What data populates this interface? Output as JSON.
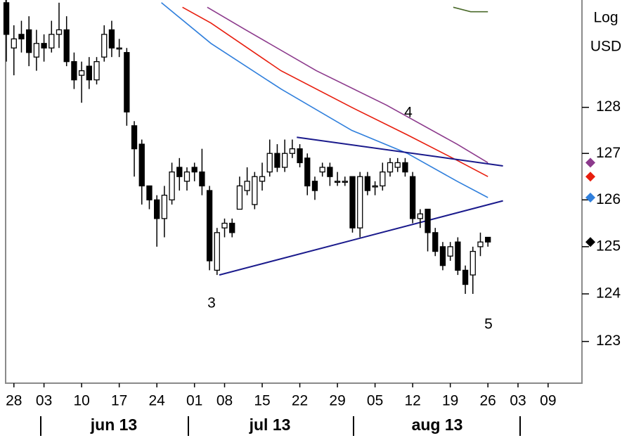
{
  "chart_data": {
    "type": "candlestick",
    "axis_label": [
      "Log",
      "USD"
    ],
    "log_scale": true,
    "x": [
      -1,
      0,
      1,
      2,
      3,
      4,
      5,
      6,
      7,
      8,
      9,
      10,
      11,
      12,
      13,
      14,
      15,
      16,
      17,
      18,
      19,
      20,
      21,
      22,
      23,
      24,
      25,
      26,
      27,
      28,
      29,
      30,
      31,
      32,
      33,
      34,
      35,
      36,
      37,
      38,
      39,
      40,
      41,
      42,
      43,
      44,
      45,
      46,
      47,
      48,
      49,
      50,
      51,
      52,
      53,
      54,
      55,
      56,
      57,
      58,
      59,
      60,
      61,
      62,
      63
    ],
    "open": [
      130.3,
      129.3,
      129.6,
      129.7,
      129.1,
      129.4,
      129.3,
      129.6,
      129.7,
      129.0,
      128.7,
      128.9,
      128.6,
      129.1,
      129.7,
      129.3,
      129.2,
      127.6,
      127.2,
      126.3,
      126.0,
      125.6,
      126.0,
      126.7,
      126.4,
      126.7,
      126.6,
      126.2,
      124.5,
      125.4,
      125.5,
      125.8,
      126.2,
      125.9,
      126.4,
      126.6,
      127.0,
      126.7,
      127.0,
      127.1,
      126.9,
      126.4,
      126.6,
      126.7,
      126.4,
      126.4,
      126.5,
      125.4,
      126.5,
      126.3,
      126.3,
      126.6,
      126.7,
      126.8,
      126.5,
      125.6,
      125.8,
      125.3,
      125.0,
      124.8,
      125.1,
      124.5,
      124.4,
      125.0,
      125.2
    ],
    "high": [
      130.4,
      129.8,
      129.9,
      130.0,
      129.7,
      129.6,
      129.9,
      130.3,
      130.0,
      129.2,
      129.0,
      129.1,
      129.1,
      129.8,
      129.9,
      129.5,
      129.3,
      127.7,
      127.3,
      126.3,
      126.1,
      126.3,
      126.8,
      126.9,
      126.7,
      126.8,
      127.1,
      126.3,
      125.4,
      125.6,
      125.6,
      126.5,
      126.7,
      126.6,
      126.8,
      127.3,
      127.2,
      127.3,
      127.3,
      127.2,
      127.0,
      126.5,
      126.8,
      126.8,
      126.6,
      126.5,
      126.5,
      126.6,
      126.6,
      126.4,
      126.8,
      126.9,
      126.9,
      126.9,
      126.6,
      125.8,
      125.8,
      125.4,
      125.1,
      125.1,
      125.2,
      124.6,
      125.0,
      125.3,
      125.2
    ],
    "low": [
      129.0,
      128.7,
      129.2,
      128.9,
      128.8,
      129.0,
      129.2,
      129.3,
      128.9,
      128.4,
      128.1,
      128.4,
      128.5,
      129.0,
      129.1,
      129.1,
      127.6,
      126.5,
      125.9,
      125.8,
      125.0,
      125.2,
      125.9,
      126.2,
      126.2,
      126.4,
      126.1,
      124.5,
      124.4,
      125.2,
      125.2,
      125.8,
      126.1,
      125.8,
      126.2,
      126.5,
      126.6,
      126.6,
      126.9,
      126.7,
      126.1,
      126.0,
      126.5,
      126.3,
      126.3,
      126.3,
      125.3,
      125.2,
      126.1,
      126.1,
      126.2,
      126.5,
      126.6,
      126.5,
      125.5,
      125.4,
      124.9,
      124.8,
      124.5,
      124.7,
      124.4,
      124.0,
      124.0,
      124.8,
      125.0
    ],
    "close": [
      129.6,
      129.5,
      129.5,
      129.2,
      129.4,
      129.3,
      129.6,
      129.7,
      129.0,
      128.6,
      128.8,
      128.6,
      129.0,
      129.6,
      129.3,
      129.3,
      127.9,
      127.1,
      126.3,
      126.0,
      125.6,
      126.1,
      126.6,
      126.5,
      126.6,
      126.6,
      126.3,
      124.7,
      125.3,
      125.5,
      125.3,
      126.3,
      126.4,
      126.5,
      126.5,
      127.0,
      126.7,
      127.0,
      127.1,
      126.8,
      126.3,
      126.2,
      126.7,
      126.5,
      126.4,
      126.4,
      125.4,
      126.5,
      126.2,
      126.3,
      126.6,
      126.8,
      126.8,
      126.6,
      125.6,
      125.7,
      125.3,
      124.9,
      124.6,
      125.0,
      124.5,
      124.2,
      124.9,
      125.1,
      125.1
    ],
    "lines": [
      {
        "color": "#2f7fdc",
        "marker": true,
        "x": [
          19.6,
          26.2,
          35.5,
          44.9,
          52.3,
          58.9,
          63
        ],
        "values": [
          130.3,
          129.4,
          128.4,
          127.5,
          127.0,
          126.4,
          126.05
        ]
      },
      {
        "color": "#e81e0e",
        "marker": true,
        "x": [
          22.4,
          26.2,
          35.5,
          44.9,
          52.3,
          58.9,
          63
        ],
        "values": [
          130.2,
          129.85,
          128.8,
          128.0,
          127.4,
          126.85,
          126.5
        ]
      },
      {
        "color": "#8c3a8c",
        "marker": true,
        "x": [
          25.7,
          30.8,
          40.2,
          49.5,
          58.9,
          63
        ],
        "values": [
          130.2,
          129.7,
          128.8,
          128.05,
          127.2,
          126.8
        ]
      },
      {
        "color": "#4a6a2a",
        "marker": false,
        "x": [
          58.4,
          60.7,
          63
        ],
        "values": [
          130.2,
          130.1,
          130.1
        ]
      }
    ],
    "trendlines": [
      {
        "color": "#1a1a8c",
        "x": [
          37.6,
          65
        ],
        "values": [
          127.35,
          126.73
        ]
      },
      {
        "color": "#1a1a8c",
        "x": [
          27.3,
          65
        ],
        "values": [
          124.4,
          125.98
        ]
      }
    ],
    "annotations": [
      "3",
      "4",
      "5"
    ],
    "month_labels": [
      "jun 13",
      "jul 13",
      "aug 13"
    ],
    "xlim": [
      -1.1,
      75.5
    ],
    "xticks": [
      {
        "value": 0,
        "label": "28"
      },
      {
        "value": 4,
        "label": "03"
      },
      {
        "value": 9,
        "label": "10"
      },
      {
        "value": 14,
        "label": "17"
      },
      {
        "value": 19,
        "label": "24"
      },
      {
        "value": 24,
        "label": "01"
      },
      {
        "value": 28,
        "label": "08"
      },
      {
        "value": 33,
        "label": "15"
      },
      {
        "value": 38,
        "label": "22"
      },
      {
        "value": 43,
        "label": "29"
      },
      {
        "value": 48,
        "label": "05"
      },
      {
        "value": 53,
        "label": "12"
      },
      {
        "value": 58,
        "label": "19"
      },
      {
        "value": 63,
        "label": "26"
      },
      {
        "value": 67,
        "label": "03"
      },
      {
        "value": 71,
        "label": "09"
      }
    ],
    "ylim": [
      122.13,
      130.36
    ],
    "yticks": [
      123,
      124,
      125,
      126,
      127,
      128
    ]
  }
}
